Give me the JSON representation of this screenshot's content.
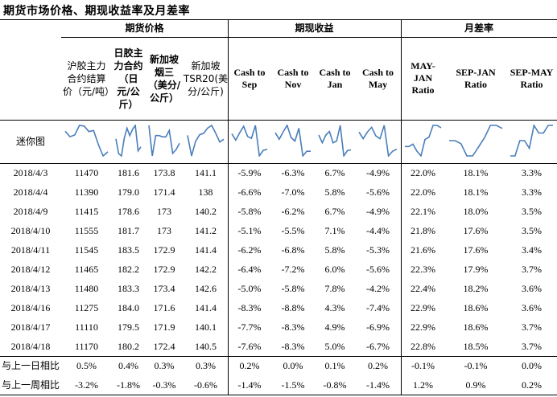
{
  "title": "期货市场价格、期现收益率及月差率",
  "groups": {
    "futures": "期货价格",
    "basis": "期现收益",
    "spread": "月差率"
  },
  "columns": [
    {
      "label": "沪胶主力合约结算价（元/吨）",
      "style": "cn"
    },
    {
      "label": "日胶主力合约（日元/公斤）",
      "style": "cnb"
    },
    {
      "label": "新加坡烟三（美分/公斤）",
      "style": "cnb"
    },
    {
      "label": "新加坡TSR20(美分/公斤)",
      "style": "cn"
    },
    {
      "label": "Cash to Sep",
      "style": "enb"
    },
    {
      "label": "Cash to Nov",
      "style": "enb"
    },
    {
      "label": "Cash to Jan",
      "style": "enb"
    },
    {
      "label": "Cash to May",
      "style": "enb"
    },
    {
      "label": "MAY-JAN Ratio",
      "style": "enb"
    },
    {
      "label": "SEP-JAN Ratio",
      "style": "enb"
    },
    {
      "label": "SEP-MAY Ratio",
      "style": "enb"
    }
  ],
  "sparkline_label": "迷你图",
  "rows": [
    {
      "date": "2018/4/3",
      "values": [
        "11470",
        "181.6",
        "173.8",
        "141.1",
        "-5.9%",
        "-6.3%",
        "6.7%",
        "-4.9%",
        "22.0%",
        "18.1%",
        "3.3%"
      ]
    },
    {
      "date": "2018/4/4",
      "values": [
        "11390",
        "179.0",
        "171.4",
        "138",
        "-6.6%",
        "-7.0%",
        "5.8%",
        "-5.6%",
        "22.0%",
        "18.1%",
        "3.3%"
      ]
    },
    {
      "date": "2018/4/9",
      "values": [
        "11415",
        "178.6",
        "173",
        "140.2",
        "-5.8%",
        "-6.2%",
        "6.7%",
        "-4.9%",
        "22.1%",
        "18.0%",
        "3.5%"
      ]
    },
    {
      "date": "2018/4/10",
      "values": [
        "11555",
        "181.7",
        "173",
        "141.2",
        "-5.1%",
        "-5.5%",
        "7.1%",
        "-4.4%",
        "21.8%",
        "17.6%",
        "3.5%"
      ]
    },
    {
      "date": "2018/4/11",
      "values": [
        "11545",
        "183.5",
        "172.9",
        "141.4",
        "-6.2%",
        "-6.8%",
        "5.8%",
        "-5.3%",
        "21.6%",
        "17.6%",
        "3.4%"
      ]
    },
    {
      "date": "2018/4/12",
      "values": [
        "11465",
        "182.2",
        "172.9",
        "142.2",
        "-6.4%",
        "-7.2%",
        "6.0%",
        "-5.6%",
        "22.3%",
        "17.9%",
        "3.7%"
      ]
    },
    {
      "date": "2018/4/13",
      "values": [
        "11480",
        "183.3",
        "173.4",
        "142.6",
        "-5.0%",
        "-5.8%",
        "7.8%",
        "-4.2%",
        "22.4%",
        "18.2%",
        "3.6%"
      ]
    },
    {
      "date": "2018/4/16",
      "values": [
        "11275",
        "184.0",
        "171.6",
        "141.4",
        "-8.3%",
        "-8.8%",
        "4.3%",
        "-7.4%",
        "22.9%",
        "18.6%",
        "3.6%"
      ]
    },
    {
      "date": "2018/4/17",
      "values": [
        "11110",
        "179.5",
        "171.9",
        "140.1",
        "-7.7%",
        "-8.3%",
        "4.9%",
        "-6.9%",
        "22.9%",
        "18.6%",
        "3.7%"
      ]
    },
    {
      "date": "2018/4/18",
      "values": [
        "11170",
        "180.2",
        "172.4",
        "140.5",
        "-7.6%",
        "-8.3%",
        "5.0%",
        "-6.7%",
        "22.8%",
        "18.5%",
        "3.7%"
      ]
    }
  ],
  "summary": [
    {
      "label": "与上一日相比",
      "values": [
        "0.5%",
        "0.4%",
        "0.3%",
        "0.3%",
        "0.2%",
        "0.0%",
        "0.1%",
        "0.2%",
        "-0.1%",
        "-0.1%",
        "0.0%"
      ]
    },
    {
      "label": "与上一周相比",
      "values": [
        "-3.2%",
        "-1.8%",
        "-0.3%",
        "-0.6%",
        "-1.4%",
        "-1.5%",
        "-0.8%",
        "-1.4%",
        "1.2%",
        "0.9%",
        "0.2%"
      ]
    }
  ],
  "colors": {
    "sparkline": "#4a7ebb",
    "rule": "#000000"
  }
}
